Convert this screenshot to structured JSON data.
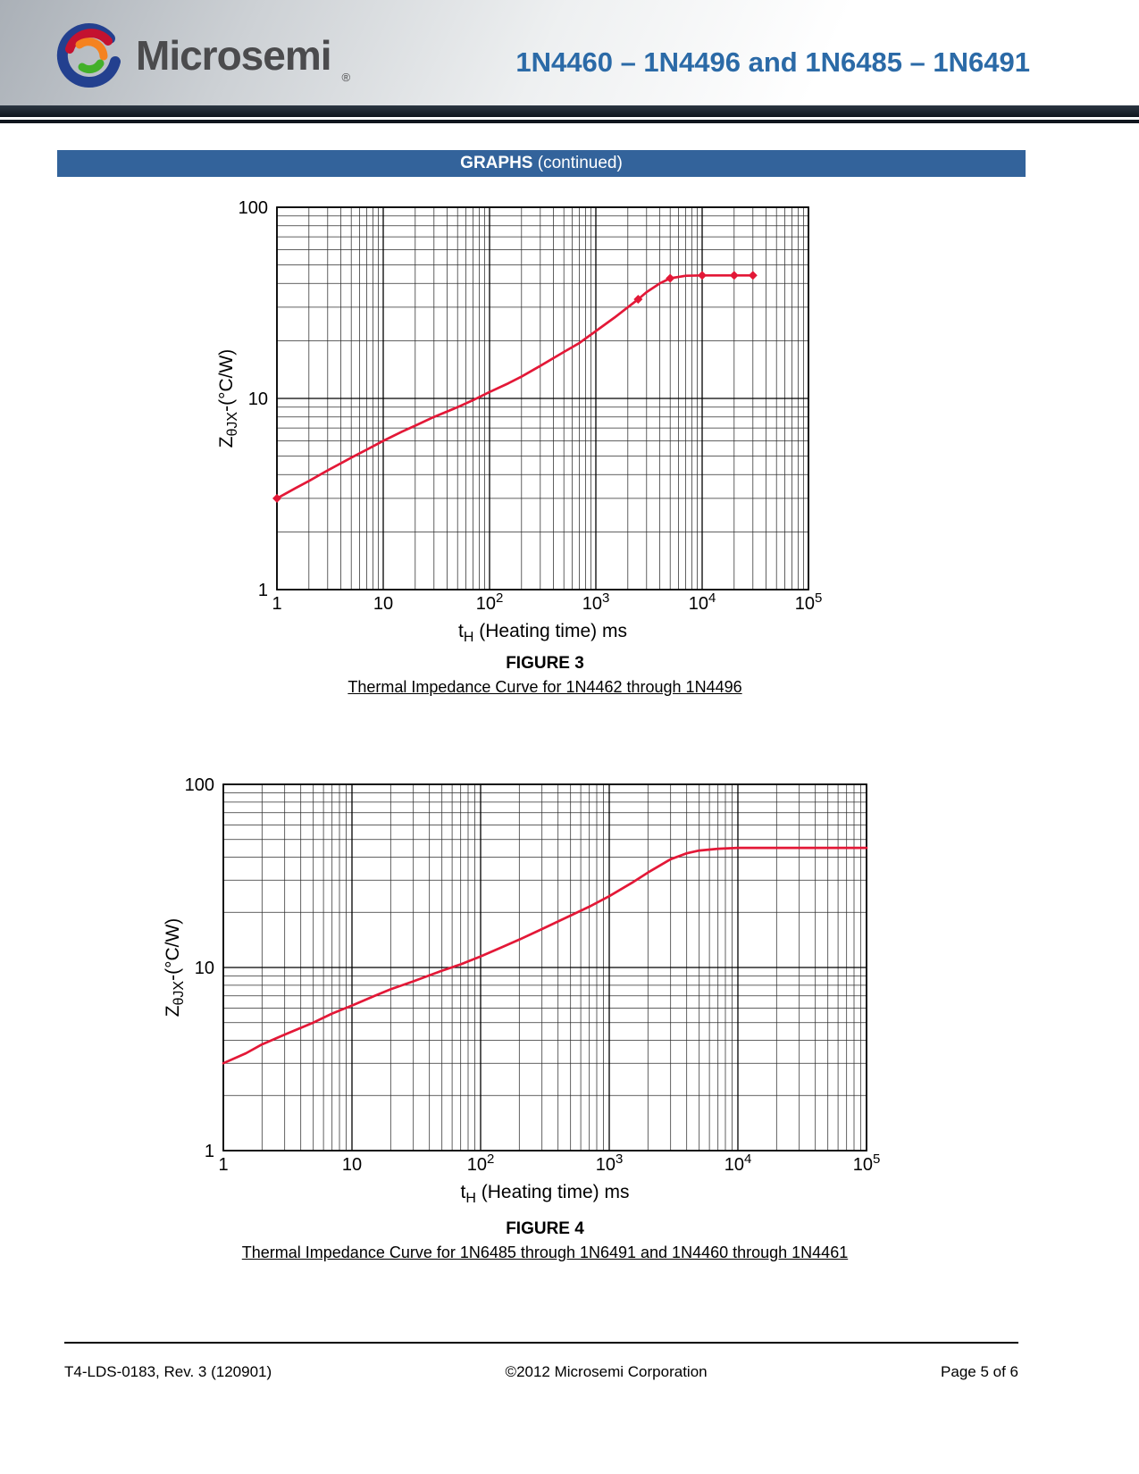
{
  "header": {
    "logo_text": "Microsemi",
    "logo_mark": "®",
    "title": "1N4460 – 1N4496 and 1N6485 – 1N6491"
  },
  "banner": {
    "bold": "GRAPHS",
    "rest": " (continued)"
  },
  "figures": [
    {
      "caption_title": "FIGURE 3",
      "caption_sub": "Thermal Impedance Curve for 1N4462 through 1N4496"
    },
    {
      "caption_title": "FIGURE 4",
      "caption_sub": "Thermal Impedance Curve for 1N6485 through 1N6491 and 1N4460 through 1N4461"
    }
  ],
  "chart_data": [
    {
      "type": "line",
      "title": "Thermal Impedance Curve for 1N4462 through 1N4496",
      "xlabel": "t_{H} (Heating time) ms",
      "ylabel": "Z_{θJX}-(°C/W)",
      "x_scale": "log",
      "y_scale": "log",
      "xlim": [
        1,
        100000
      ],
      "ylim": [
        1,
        100
      ],
      "grid": true,
      "legend": "none",
      "line_color": "#e31837",
      "x_ticks": [
        1,
        10,
        100,
        1000,
        10000,
        100000
      ],
      "x_tick_labels": [
        "1",
        "10",
        "10^{2}",
        "10^{3}",
        "10^{4}",
        "10^{5}"
      ],
      "y_ticks": [
        1,
        10,
        100
      ],
      "y_tick_labels": [
        "1",
        "10",
        "100"
      ],
      "series": [
        {
          "name": "thermal-impedance",
          "x": [
            1,
            1.5,
            2,
            3,
            5,
            7,
            10,
            15,
            20,
            30,
            50,
            70,
            100,
            150,
            200,
            300,
            500,
            700,
            1000,
            1500,
            2000,
            2500,
            3000,
            4000,
            5000,
            7000,
            10000,
            15000,
            20000,
            30000
          ],
          "y": [
            3.0,
            3.4,
            3.7,
            4.2,
            4.9,
            5.4,
            6.0,
            6.7,
            7.2,
            8.0,
            9.0,
            9.8,
            10.8,
            12.0,
            13.0,
            14.8,
            17.5,
            19.5,
            22.5,
            26.5,
            30.0,
            33.0,
            36.0,
            40.0,
            42.5,
            43.8,
            44.0,
            44.0,
            44.0,
            44.0
          ]
        }
      ],
      "markers": [
        [
          1,
          3.0
        ],
        [
          2500,
          33
        ],
        [
          5000,
          42.5
        ],
        [
          10000,
          44.0
        ],
        [
          20000,
          44.0
        ],
        [
          30000,
          44.0
        ]
      ]
    },
    {
      "type": "line",
      "title": "Thermal Impedance Curve for 1N6485 through 1N6491 and 1N4460 through 1N4461",
      "xlabel": "t_{H} (Heating time) ms",
      "ylabel": "Z_{θJX}-(°C/W)",
      "x_scale": "log",
      "y_scale": "log",
      "xlim": [
        1,
        100000
      ],
      "ylim": [
        1,
        100
      ],
      "grid": true,
      "legend": "none",
      "line_color": "#e31837",
      "x_ticks": [
        1,
        10,
        100,
        1000,
        10000,
        100000
      ],
      "x_tick_labels": [
        "1",
        "10",
        "10^{2}",
        "10^{3}",
        "10^{4}",
        "10^{5}"
      ],
      "y_ticks": [
        1,
        10,
        100
      ],
      "y_tick_labels": [
        "1",
        "10",
        "100"
      ],
      "series": [
        {
          "name": "thermal-impedance",
          "x": [
            1,
            1.5,
            2,
            3,
            5,
            7,
            10,
            15,
            20,
            30,
            50,
            70,
            100,
            150,
            200,
            300,
            500,
            700,
            1000,
            1500,
            2000,
            3000,
            4000,
            5000,
            7000,
            10000,
            20000,
            50000,
            100000
          ],
          "y": [
            3.0,
            3.4,
            3.8,
            4.3,
            5.0,
            5.6,
            6.2,
            7.0,
            7.6,
            8.4,
            9.6,
            10.4,
            11.5,
            13.0,
            14.2,
            16.2,
            19.2,
            21.5,
            24.5,
            29.0,
            33.0,
            39.0,
            42.0,
            43.5,
            44.5,
            45.0,
            45.0,
            45.0,
            45.0
          ]
        }
      ],
      "markers": []
    }
  ],
  "footer": {
    "left": "T4-LDS-0183, Rev. 3 (120901)",
    "center": "©2012 Microsemi Corporation",
    "right": "Page 5 of 6"
  }
}
